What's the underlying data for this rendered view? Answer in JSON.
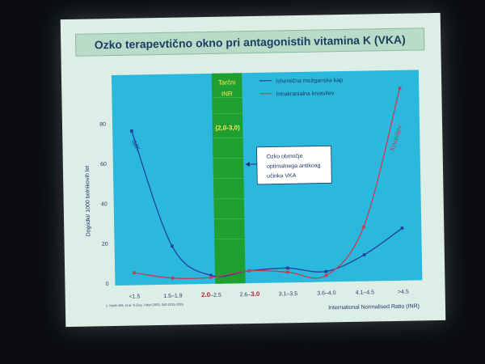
{
  "slide": {
    "title": "Ozko terapevtično okno pri antagonistih vitamina K (VKA)"
  },
  "chart_data": {
    "type": "line",
    "title": "Ozko terapevtično okno pri antagonistih vitamina K (VKA)",
    "ylabel": "Dogodki/ 1000 bolnikovih let",
    "xlabel": "International Normalised Ratio (INR)",
    "ylim": [
      0,
      100
    ],
    "yticks": [
      0,
      20,
      40,
      60,
      80
    ],
    "categories": [
      "<1.5",
      "1.5–1.9",
      "2.0–2.5",
      "2.6–3.0",
      "3.1–3.5",
      "3.6–4.0",
      "4.1–4.5",
      ">4.5"
    ],
    "highlight_categories": [
      "2.0–2.5",
      "2.6–3.0"
    ],
    "highlight_prefix": {
      "2.0–2.5": "2.0",
      "2.6–3.0": "3.0"
    },
    "series": [
      {
        "name": "Ishemična možganska kap",
        "short_label": "IMK",
        "color": "#23419a",
        "values": [
          76,
          18,
          3,
          5,
          6,
          4,
          12,
          25
        ]
      },
      {
        "name": "Intrakranialna krvavitev",
        "short_label": "Krvavitev",
        "color": "#c83a55",
        "values": [
          5,
          2,
          2,
          5,
          4,
          2,
          26,
          95
        ]
      }
    ],
    "band": {
      "from_category": "2.0–2.5",
      "to_category": "2.6–3.0",
      "label_line1": "Tarčni",
      "label_line2": "INR",
      "range_label": "(2,0-3,0)"
    },
    "annotation": {
      "line1": "Ozko območje",
      "line2": "optimalnega antikoag",
      "line3": "učinka VKA"
    },
    "footnote": "1. Hylek EM, et al. N Eng J Med 2003; 349:1019-1026.",
    "colors": {
      "plot_bg": "#2bb8dd",
      "band": "#1f9f2f",
      "band_text": "#ffe85a"
    }
  }
}
